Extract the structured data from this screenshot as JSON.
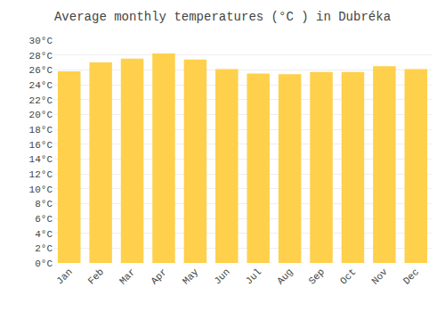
{
  "chart_data": {
    "type": "bar",
    "title": "Average monthly temperatures (°C ) in Dubréka",
    "categories": [
      "Jan",
      "Feb",
      "Mar",
      "Apr",
      "May",
      "Jun",
      "Jul",
      "Aug",
      "Sep",
      "Oct",
      "Nov",
      "Dec"
    ],
    "values": [
      25.8,
      27.0,
      27.5,
      28.2,
      27.4,
      26.1,
      25.5,
      25.4,
      25.7,
      25.7,
      26.5,
      26.1
    ],
    "color": "#FFD04B",
    "ylim": [
      0,
      30
    ],
    "yticks": [
      {
        "value": 0,
        "label": "0°C"
      },
      {
        "value": 2,
        "label": "2°C"
      },
      {
        "value": 4,
        "label": "4°C"
      },
      {
        "value": 6,
        "label": "6°C"
      },
      {
        "value": 8,
        "label": "8°C"
      },
      {
        "value": 10,
        "label": "10°C"
      },
      {
        "value": 12,
        "label": "12°C"
      },
      {
        "value": 14,
        "label": "14°C"
      },
      {
        "value": 16,
        "label": "16°C"
      },
      {
        "value": 18,
        "label": "18°C"
      },
      {
        "value": 20,
        "label": "20°C"
      },
      {
        "value": 22,
        "label": "22°C"
      },
      {
        "value": 24,
        "label": "24°C"
      },
      {
        "value": 26,
        "label": "26°C"
      },
      {
        "value": 28,
        "label": "28°C"
      },
      {
        "value": 30,
        "label": "30°C"
      }
    ],
    "grid": true
  }
}
